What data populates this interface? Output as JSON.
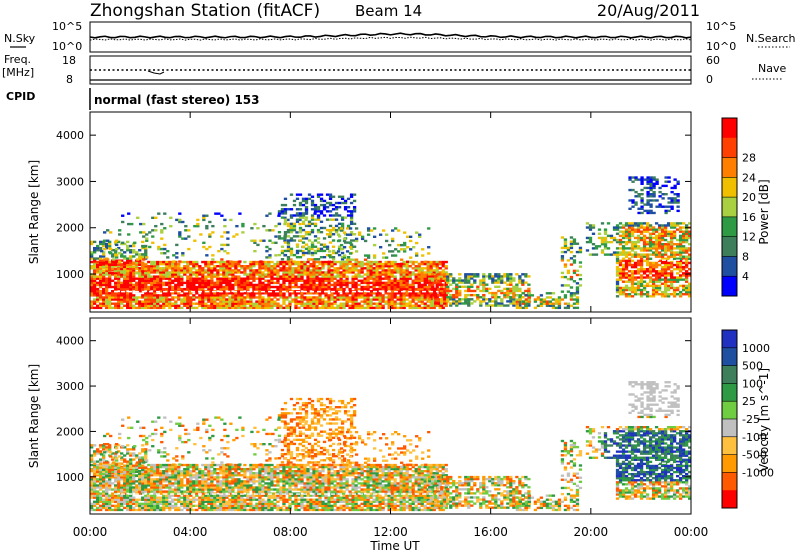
{
  "header": {
    "title": "Zhongshan Station (fitACF)",
    "beam": "Beam 14",
    "date": "20/Aug/2011"
  },
  "noise_panel": {
    "left_label": "N.Sky",
    "left_ticks": [
      "10^5",
      "10^0"
    ],
    "right_label": "N.Search",
    "right_ticks": [
      "10^5",
      "10^0"
    ]
  },
  "freq_panel": {
    "left_label_1": "Freq.",
    "left_label_2": "[MHz]",
    "left_ticks": [
      "18",
      "8"
    ],
    "right_label": "Nave",
    "right_ticks": [
      "60",
      "0"
    ]
  },
  "cpid": {
    "label": "CPID",
    "mode": "normal (fast stereo) 153"
  },
  "x_axis": {
    "label": "Time UT",
    "ticks": [
      "00:00",
      "04:00",
      "08:00",
      "12:00",
      "16:00",
      "20:00",
      "00:00"
    ]
  },
  "y_axis": {
    "label": "Slant Range [km]",
    "ticks": [
      "1000",
      "2000",
      "3000",
      "4000"
    ]
  },
  "colors": {
    "power_scale": [
      "#0000ff",
      "#1e4fa0",
      "#3c7f5a",
      "#2e9a44",
      "#a8d040",
      "#f0c000",
      "#ff8000",
      "#ff4000",
      "#ff0000"
    ],
    "velocity_scale": [
      "#ff0000",
      "#ff5a00",
      "#ff9a00",
      "#ffc040",
      "#c0c0c0",
      "#70cc40",
      "#2e9a44",
      "#3c7f5a",
      "#1e4fa0",
      "#2030c0"
    ]
  },
  "chart_data": [
    {
      "type": "heatmap",
      "name": "power",
      "colorbar_label": "Power [dB]",
      "colorbar_ticks": [
        "4",
        "8",
        "12",
        "16",
        "20",
        "24",
        "28"
      ],
      "xlim_hours": [
        0,
        24
      ],
      "ylim_km": [
        180,
        4500
      ]
    },
    {
      "type": "heatmap",
      "name": "velocity",
      "colorbar_label": "Velocity [m s^-1]",
      "colorbar_ticks": [
        "1000",
        "500",
        "100",
        "25",
        "-25",
        "-100",
        "-500",
        "-1000"
      ],
      "xlim_hours": [
        0,
        24
      ],
      "ylim_km": [
        180,
        4500
      ]
    }
  ]
}
